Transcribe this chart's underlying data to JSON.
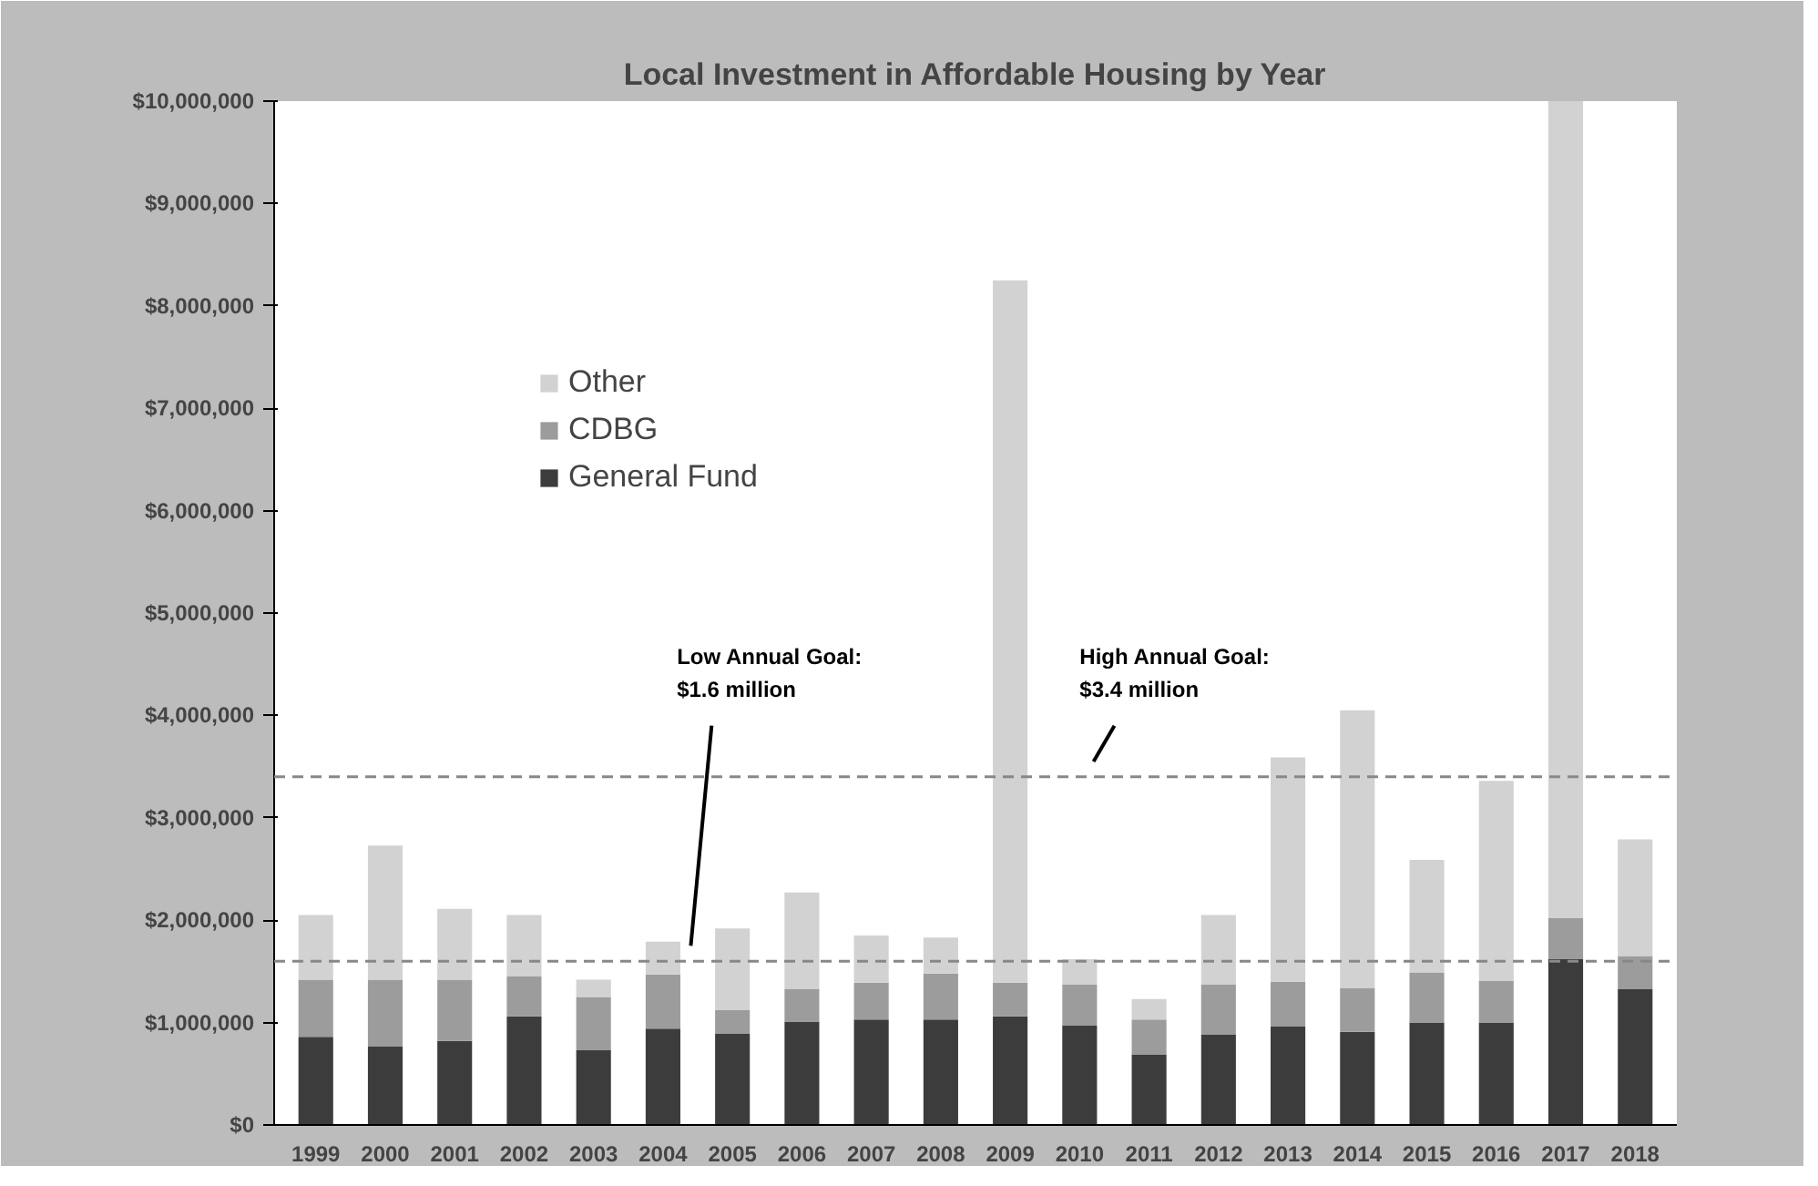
{
  "chart_data": {
    "type": "bar",
    "title": "Local Investment in Affordable Housing by Year",
    "stacked": true,
    "categories": [
      "1999",
      "2000",
      "2001",
      "2002",
      "2003",
      "2004",
      "2005",
      "2006",
      "2007",
      "2008",
      "2009",
      "2010",
      "2011",
      "2012",
      "2013",
      "2014",
      "2015",
      "2016",
      "2017",
      "2018"
    ],
    "series": [
      {
        "name": "General Fund",
        "color": "#3c3c3c",
        "values": [
          860000,
          770000,
          820000,
          1060000,
          730000,
          940000,
          890000,
          1010000,
          1030000,
          1030000,
          1060000,
          970000,
          690000,
          880000,
          960000,
          910000,
          1000000,
          1000000,
          1620000,
          1330000
        ]
      },
      {
        "name": "CDBG",
        "color": "#9c9c9c",
        "values": [
          560000,
          650000,
          600000,
          390000,
          520000,
          530000,
          230000,
          320000,
          360000,
          450000,
          330000,
          400000,
          340000,
          490000,
          440000,
          430000,
          490000,
          410000,
          400000,
          320000
        ]
      },
      {
        "name": "Other",
        "color": "#d2d2d2",
        "values": [
          630000,
          1310000,
          690000,
          600000,
          170000,
          320000,
          800000,
          940000,
          460000,
          350000,
          6860000,
          250000,
          200000,
          680000,
          2190000,
          2710000,
          1100000,
          1950000,
          7980000,
          1140000
        ]
      }
    ],
    "ylim": [
      0,
      10000000
    ],
    "yticks": [
      {
        "value": 0,
        "label": "$0"
      },
      {
        "value": 1000000,
        "label": "$1,000,000"
      },
      {
        "value": 2000000,
        "label": "$2,000,000"
      },
      {
        "value": 3000000,
        "label": "$3,000,000"
      },
      {
        "value": 4000000,
        "label": "$4,000,000"
      },
      {
        "value": 5000000,
        "label": "$5,000,000"
      },
      {
        "value": 6000000,
        "label": "$6,000,000"
      },
      {
        "value": 7000000,
        "label": "$7,000,000"
      },
      {
        "value": 8000000,
        "label": "$8,000,000"
      },
      {
        "value": 9000000,
        "label": "$9,000,000"
      },
      {
        "value": 10000000,
        "label": "$10,000,000"
      }
    ],
    "ref_lines": [
      {
        "axis": "y",
        "value": 1600000,
        "color": "#888888",
        "line_style": "dashed",
        "label": "Low Annual Goal:\n$1.6 million"
      },
      {
        "axis": "y",
        "value": 3400000,
        "color": "#888888",
        "line_style": "dashed",
        "label": "High Annual Goal:\n$3.4 million"
      }
    ],
    "grid": false,
    "legend": "top left"
  }
}
